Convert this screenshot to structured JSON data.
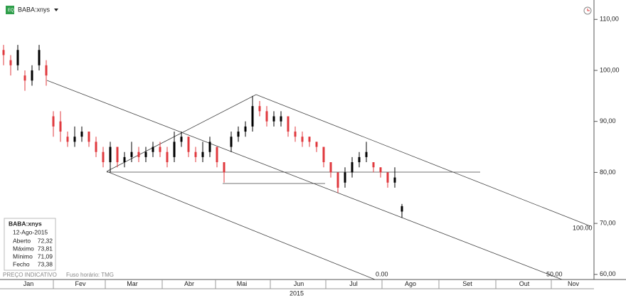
{
  "header": {
    "symbol": "BABA:xnys"
  },
  "footer": {
    "note": "PREÇO INDICATIVO",
    "timezone": "Fuso horário: TMG"
  },
  "info_box": {
    "symbol": "BABA:xnys",
    "date": "12-Ago-2015",
    "rows": [
      [
        "Aberto",
        "72,32"
      ],
      [
        "Máximo",
        "73,81"
      ],
      [
        "Mínimo",
        "71,09"
      ],
      [
        "Fecho",
        "73,38"
      ]
    ]
  },
  "annotations": [
    "100.00",
    "0.00",
    "50.00"
  ],
  "chart_data": {
    "type": "candlestick",
    "categories": [
      null,
      null,
      null,
      null,
      null,
      null,
      null,
      null,
      null,
      null,
      null,
      null,
      null,
      null,
      null,
      null,
      null,
      null,
      null,
      null,
      null,
      null,
      null,
      null,
      null,
      null,
      null,
      null,
      null,
      null,
      null,
      null,
      null,
      null,
      null,
      null,
      null,
      null,
      null,
      null,
      null,
      null,
      null,
      null,
      null,
      null,
      null,
      null,
      null,
      null,
      null,
      null,
      null,
      null,
      null,
      null,
      null
    ],
    "open": [
      104,
      102,
      101,
      99,
      98,
      101,
      101,
      91,
      90,
      87,
      86,
      87,
      88,
      86,
      84,
      82,
      85,
      82,
      83,
      84,
      83,
      84,
      85,
      84,
      83,
      86,
      87,
      84,
      83,
      84,
      85,
      82,
      85,
      87,
      88,
      89,
      93,
      92,
      90,
      90,
      91,
      88,
      87,
      87,
      86,
      85,
      82,
      80,
      78,
      80,
      82,
      83,
      82,
      81,
      80,
      78,
      72.32
    ],
    "high": [
      105,
      103,
      105,
      100,
      101,
      105,
      102,
      92,
      92,
      88,
      89,
      89,
      88,
      87,
      85,
      86,
      85,
      84,
      86,
      85,
      85,
      86,
      86,
      85,
      88,
      88,
      87,
      85,
      86,
      87,
      85,
      82,
      88,
      89,
      90,
      95,
      94,
      93,
      92,
      92,
      91,
      89,
      88,
      87,
      86,
      85,
      82,
      80,
      81,
      83,
      84,
      86,
      82,
      81,
      80,
      81,
      73.81
    ],
    "low": [
      101,
      99,
      100,
      96,
      97,
      100,
      97,
      87,
      86,
      85,
      85,
      86,
      85,
      83,
      81,
      80,
      81,
      81,
      82,
      82,
      82,
      83,
      83,
      81,
      82,
      85,
      83,
      82,
      82,
      83,
      81,
      78,
      84,
      86,
      87,
      88,
      91,
      89,
      89,
      89,
      87,
      86,
      85,
      85,
      84,
      81,
      79,
      76,
      77,
      79,
      81,
      82,
      80,
      79,
      77,
      77,
      71.09
    ],
    "close": [
      103,
      101,
      104,
      98,
      100,
      104,
      99,
      89,
      88,
      86,
      87,
      88,
      86,
      84,
      82,
      85,
      82,
      83,
      84,
      83,
      84,
      85,
      84,
      82,
      86,
      87,
      84,
      83,
      84,
      86,
      82,
      80,
      87,
      88,
      89,
      93,
      92,
      90,
      91,
      91,
      88,
      87,
      86,
      86,
      85,
      82,
      80,
      77,
      80,
      82,
      83,
      84,
      81,
      80,
      78,
      79,
      73.38
    ],
    "up_color": "#000000",
    "down_color": "#e0393e",
    "ylim": [
      59,
      113.8
    ],
    "yticks": [
      {
        "value": 60,
        "label": "60,00"
      },
      {
        "value": 70,
        "label": "70,00"
      },
      {
        "value": 80,
        "label": "80,00"
      },
      {
        "value": 90,
        "label": "90,00"
      },
      {
        "value": 100,
        "label": "100,00"
      },
      {
        "value": 110,
        "label": "110,00"
      }
    ],
    "months": [
      "Jan",
      "Fev",
      "Mar",
      "Abr",
      "Mai",
      "Jun",
      "Jul",
      "Ago",
      "Set",
      "Out",
      "Nov"
    ],
    "year": "2015"
  }
}
